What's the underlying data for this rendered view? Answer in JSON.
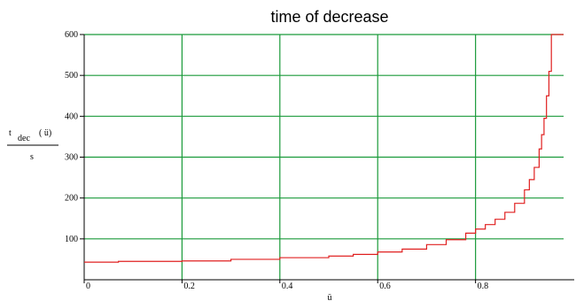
{
  "chart_data": {
    "type": "line",
    "title": "time of decrease",
    "xlabel": "ü",
    "ylabel": {
      "numerator_symbol": "t",
      "numerator_subscript": "dec",
      "numerator_arg": "( ü)",
      "denominator": "s"
    },
    "xlim": [
      0,
      0.98
    ],
    "ylim": [
      0,
      600
    ],
    "x_ticks": [
      "0",
      "0.2",
      "0.4",
      "0.6",
      "0.8"
    ],
    "x_tick_values": [
      0,
      0.2,
      0.4,
      0.6,
      0.8
    ],
    "y_ticks": [
      "100",
      "200",
      "300",
      "400",
      "500",
      "600"
    ],
    "y_tick_values": [
      100,
      200,
      300,
      400,
      500,
      600
    ],
    "grid": true,
    "colors": {
      "line": "#e02020",
      "grid": "#1a9a3a",
      "axis": "#000000"
    },
    "series": [
      {
        "values_x": [
          0,
          0.07,
          0.2,
          0.3,
          0.4,
          0.5,
          0.55,
          0.6,
          0.65,
          0.7,
          0.74,
          0.78,
          0.8,
          0.82,
          0.84,
          0.86,
          0.88,
          0.9,
          0.91,
          0.92,
          0.93,
          0.935,
          0.94,
          0.945,
          0.95,
          0.955
        ],
        "values_y": [
          43,
          45,
          46,
          50,
          54,
          58,
          62,
          68,
          75,
          86,
          98,
          114,
          124,
          135,
          148,
          165,
          187,
          220,
          245,
          275,
          320,
          355,
          395,
          450,
          510,
          600
        ]
      }
    ]
  }
}
